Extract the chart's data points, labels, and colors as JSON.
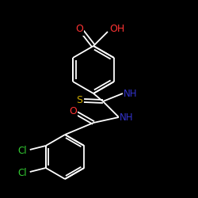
{
  "background_color": "#000000",
  "bond_color": "#ffffff",
  "atom_colors": {
    "O": "#ff3333",
    "OH": "#ff3333",
    "S": "#ccaa00",
    "NH": "#3333cc",
    "Cl": "#33cc33",
    "C": "#ffffff"
  },
  "figsize": [
    2.5,
    2.5
  ],
  "dpi": 100
}
